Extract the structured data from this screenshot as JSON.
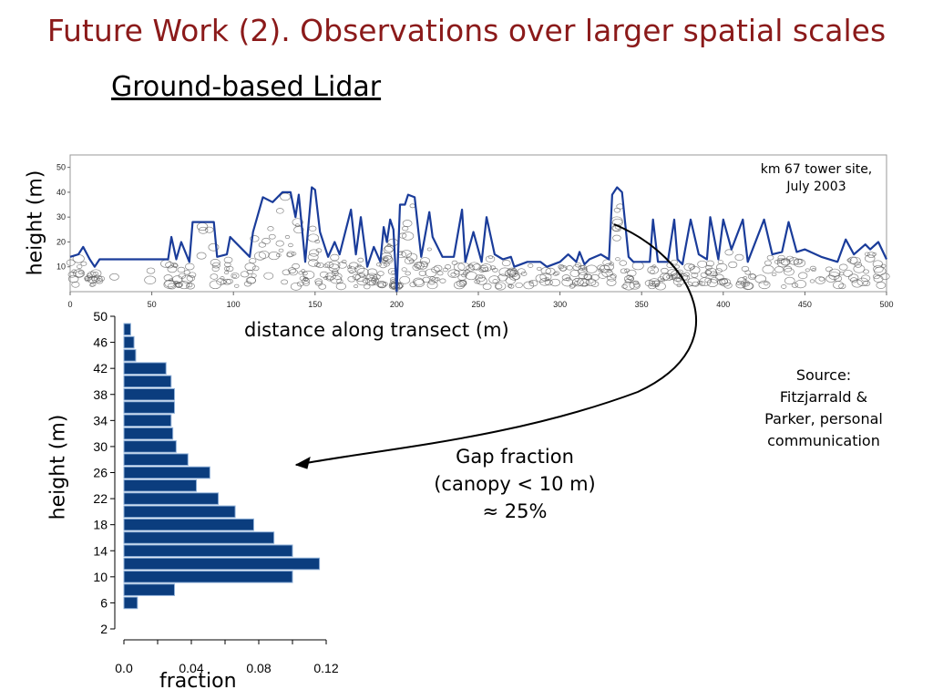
{
  "slide": {
    "title": "Future Work (2). Observations over larger spatial scales",
    "subtitle": "Ground-based Lidar",
    "site_note": [
      "km 67 tower site,",
      "July 2003"
    ],
    "source_note": [
      "Source:",
      "Fitzjarrald &",
      "Parker, personal",
      "communication"
    ],
    "gap_note": [
      "Gap fraction",
      "(canopy < 10 m)",
      "≈ 25%"
    ],
    "colors": {
      "title": "#8b1a1a",
      "bars": "#0b3d7e",
      "canopy_line": "#1a3c9a"
    }
  },
  "chart_data": [
    {
      "type": "line",
      "xlabel": "distance along transect (m)",
      "ylabel": "height (m)",
      "xlim": [
        0,
        500
      ],
      "ylim": [
        0,
        55
      ],
      "xticks": [
        0,
        50,
        100,
        150,
        200,
        250,
        300,
        350,
        400,
        450,
        500
      ],
      "yticks": [
        10,
        20,
        30,
        40,
        50
      ],
      "series": [
        {
          "x": [
            0,
            5,
            8,
            12,
            15,
            18,
            60,
            62,
            65,
            68,
            73,
            75,
            88,
            90,
            96,
            98,
            110,
            112,
            118,
            124,
            130,
            135,
            138,
            140,
            144,
            148,
            150,
            153,
            158,
            162,
            165,
            172,
            175,
            178,
            182,
            186,
            190,
            192,
            194,
            196,
            198,
            200,
            202,
            205,
            207,
            211,
            215,
            220,
            222,
            228,
            235,
            240,
            242,
            247,
            252,
            255,
            260,
            265,
            270,
            272,
            280,
            288,
            292,
            300,
            305,
            310,
            312,
            315,
            318,
            325,
            330,
            332,
            335,
            338,
            342,
            345,
            355,
            357,
            360,
            366,
            370,
            372,
            375,
            380,
            385,
            390,
            392,
            397,
            400,
            405,
            412,
            415,
            425,
            430,
            436,
            440,
            445,
            450,
            460,
            470,
            475,
            480,
            487,
            490,
            495,
            500
          ],
          "y": [
            14,
            15,
            18,
            13,
            10,
            13,
            13,
            22,
            13,
            20,
            12,
            28,
            28,
            14,
            15,
            22,
            14,
            24,
            38,
            36,
            40,
            40,
            30,
            39,
            12,
            42,
            41,
            24,
            14,
            20,
            15,
            33,
            15,
            30,
            10,
            18,
            12,
            26,
            20,
            29,
            25,
            0,
            35,
            35,
            39,
            38,
            14,
            32,
            22,
            14,
            14,
            33,
            12,
            24,
            12,
            30,
            15,
            13,
            14,
            10,
            12,
            12,
            10,
            12,
            15,
            12,
            16,
            11,
            13,
            15,
            13,
            39,
            42,
            40,
            14,
            12,
            12,
            29,
            12,
            12,
            29,
            13,
            11,
            29,
            15,
            13,
            30,
            13,
            29,
            17,
            29,
            12,
            29,
            15,
            16,
            28,
            16,
            17,
            14,
            12,
            21,
            15,
            19,
            17,
            20,
            13
          ],
          "name": ""
        }
      ]
    },
    {
      "type": "bar",
      "orientation": "horizontal",
      "xlabel": "fraction",
      "ylabel": "height (m)",
      "xlim": [
        0,
        0.12
      ],
      "xticks": [
        "0.0",
        "0.04",
        "0.08",
        "0.12"
      ],
      "yticks": [
        "2",
        "6",
        "10",
        "14",
        "18",
        "22",
        "26",
        "30",
        "34",
        "38",
        "42",
        "46",
        "50"
      ],
      "categories": [
        "6",
        "8",
        "10",
        "12",
        "14",
        "16",
        "18",
        "20",
        "22",
        "24",
        "26",
        "28",
        "30",
        "32",
        "34",
        "36",
        "38",
        "40",
        "42",
        "44",
        "46",
        "48"
      ],
      "values": [
        0.008,
        0.03,
        0.1,
        0.116,
        0.1,
        0.089,
        0.077,
        0.066,
        0.056,
        0.043,
        0.051,
        0.038,
        0.031,
        0.029,
        0.028,
        0.03,
        0.03,
        0.028,
        0.025,
        0.007,
        0.006,
        0.004
      ]
    }
  ]
}
